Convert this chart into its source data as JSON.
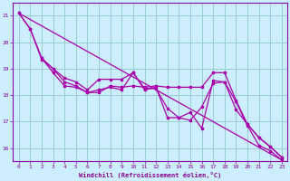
{
  "xlabel": "Windchill (Refroidissement éolien,°C)",
  "background_color": "#cceeff",
  "line_color": "#aa00aa",
  "grid_color": "#99cccc",
  "xlim": [
    -0.5,
    23.5
  ],
  "ylim": [
    15.5,
    21.5
  ],
  "yticks": [
    16,
    17,
    18,
    19,
    20,
    21
  ],
  "xticks": [
    0,
    1,
    2,
    3,
    4,
    5,
    6,
    7,
    8,
    9,
    10,
    11,
    12,
    13,
    14,
    15,
    16,
    17,
    18,
    19,
    20,
    21,
    22,
    23
  ],
  "series_data": {
    "line1_x": [
      0,
      1,
      2,
      3,
      4,
      5,
      6,
      7,
      8,
      9,
      10,
      11,
      12,
      13,
      14,
      15,
      16,
      17,
      18,
      19,
      20,
      21,
      22,
      23
    ],
    "line1_y": [
      21.1,
      20.5,
      19.4,
      18.85,
      18.35,
      18.3,
      18.1,
      18.1,
      18.35,
      18.3,
      18.35,
      18.3,
      18.35,
      18.3,
      18.3,
      18.3,
      18.3,
      18.85,
      18.85,
      17.8,
      16.9,
      16.4,
      16.05,
      15.65
    ],
    "line2_x": [
      2,
      3,
      4,
      5,
      6,
      7,
      8,
      9,
      10,
      11,
      12,
      13,
      14,
      15,
      16,
      17,
      18,
      19,
      20,
      21,
      22,
      23
    ],
    "line2_y": [
      19.4,
      19.0,
      18.65,
      18.5,
      18.2,
      18.6,
      18.6,
      18.6,
      18.85,
      18.25,
      18.25,
      17.5,
      17.15,
      17.35,
      16.75,
      18.55,
      18.5,
      17.45,
      16.9,
      16.4,
      16.05,
      15.65
    ],
    "line3_x": [
      0,
      1,
      2,
      3,
      4,
      5,
      6,
      7,
      8,
      9,
      10,
      11,
      12,
      13,
      14,
      15,
      16,
      17,
      18,
      19,
      20,
      21,
      22,
      23
    ],
    "line3_y": [
      21.1,
      20.5,
      19.35,
      19.0,
      18.5,
      18.35,
      18.1,
      18.2,
      18.3,
      18.2,
      18.85,
      18.2,
      18.3,
      17.15,
      17.15,
      17.05,
      17.55,
      18.45,
      18.5,
      17.75,
      16.85,
      16.1,
      15.9,
      15.55
    ],
    "line4_x": [
      0,
      23
    ],
    "line4_y": [
      21.1,
      15.55
    ]
  }
}
